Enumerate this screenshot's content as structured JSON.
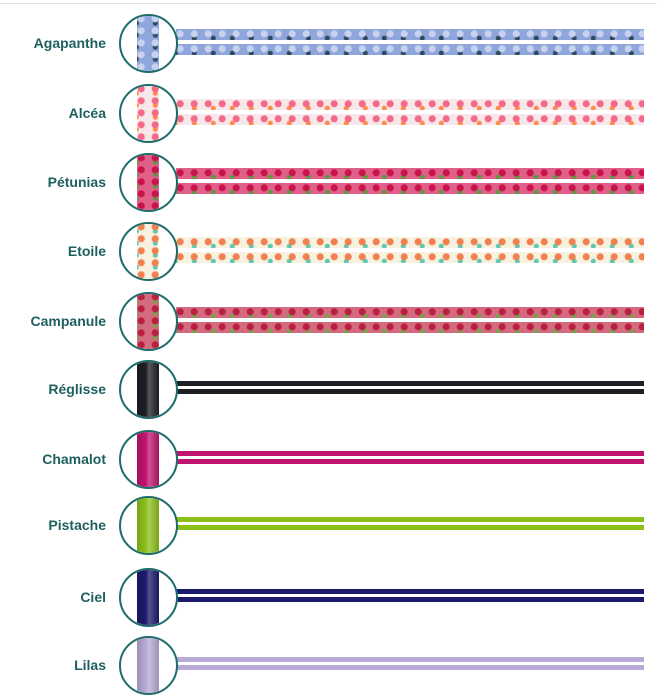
{
  "items": [
    {
      "name": "Agapanthe",
      "kind": "ribbon",
      "colors": [
        "#8fa6dc",
        "#c8d2ee",
        "#2f4a5c"
      ]
    },
    {
      "name": "Alcéa",
      "kind": "ribbon",
      "colors": [
        "#f6e8ea",
        "#f46a86",
        "#ff8a4a"
      ]
    },
    {
      "name": "Pétunias",
      "kind": "ribbon",
      "colors": [
        "#e0608a",
        "#c8144a",
        "#5a9a40"
      ]
    },
    {
      "name": "Etoile",
      "kind": "ribbon",
      "colors": [
        "#f7f1e0",
        "#f08050",
        "#60c8b0"
      ]
    },
    {
      "name": "Campanule",
      "kind": "ribbon",
      "colors": [
        "#d46a80",
        "#b8203e",
        "#7aa050"
      ]
    },
    {
      "name": "Réglisse",
      "kind": "cord",
      "colors": [
        "#1d1f24"
      ]
    },
    {
      "name": "Chamalot",
      "kind": "cord",
      "colors": [
        "#c0146e"
      ]
    },
    {
      "name": "Pistache",
      "kind": "cord",
      "colors": [
        "#8cbf1a"
      ]
    },
    {
      "name": "Ciel",
      "kind": "cord",
      "colors": [
        "#1c1a6b"
      ]
    },
    {
      "name": "Lilas",
      "kind": "cord",
      "colors": [
        "#b8aad4"
      ]
    }
  ]
}
